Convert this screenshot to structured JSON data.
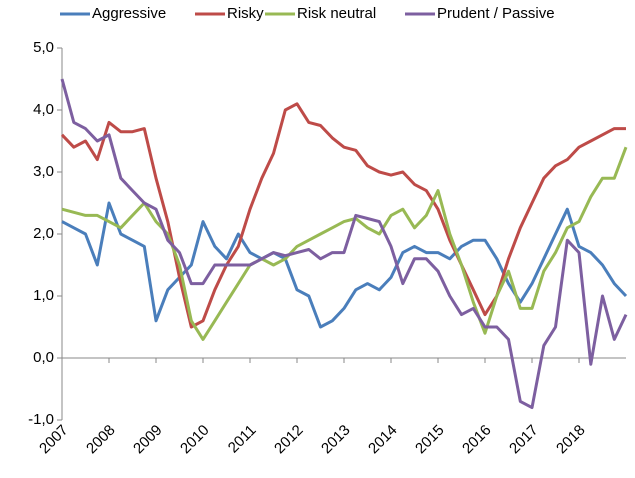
{
  "chart_data": {
    "type": "line",
    "x": [
      2007,
      2007.25,
      2007.5,
      2007.75,
      2008,
      2008.25,
      2008.5,
      2008.75,
      2009,
      2009.25,
      2009.5,
      2009.75,
      2010,
      2010.25,
      2010.5,
      2010.75,
      2011,
      2011.25,
      2011.5,
      2011.75,
      2012,
      2012.25,
      2012.5,
      2012.75,
      2013,
      2013.25,
      2013.5,
      2013.75,
      2014,
      2014.25,
      2014.5,
      2014.75,
      2015,
      2015.25,
      2015.5,
      2015.75,
      2016,
      2016.25,
      2016.5,
      2016.75,
      2017,
      2017.25,
      2017.5,
      2017.75,
      2018,
      2018.25,
      2018.5,
      2018.75,
      2019
    ],
    "series": [
      {
        "name": "Aggressive",
        "color": "#4a7ebb",
        "values": [
          2.2,
          2.1,
          2.0,
          1.5,
          2.5,
          2.0,
          1.9,
          1.8,
          0.6,
          1.1,
          1.3,
          1.5,
          2.2,
          1.8,
          1.6,
          2.0,
          1.7,
          1.6,
          1.7,
          1.6,
          1.1,
          1.0,
          0.5,
          0.6,
          0.8,
          1.1,
          1.2,
          1.1,
          1.3,
          1.7,
          1.8,
          1.7,
          1.7,
          1.6,
          1.8,
          1.9,
          1.9,
          1.6,
          1.2,
          0.9,
          1.2,
          1.6,
          2.0,
          2.4,
          1.8,
          1.7,
          1.5,
          1.2,
          1.0
        ]
      },
      {
        "name": "Risky",
        "color": "#be4b48",
        "values": [
          3.6,
          3.4,
          3.5,
          3.2,
          3.8,
          3.65,
          3.65,
          3.7,
          2.9,
          2.2,
          1.3,
          0.5,
          0.6,
          1.1,
          1.5,
          1.8,
          2.4,
          2.9,
          3.3,
          4.0,
          4.1,
          3.8,
          3.75,
          3.55,
          3.4,
          3.35,
          3.1,
          3.0,
          2.95,
          3.0,
          2.8,
          2.7,
          2.4,
          1.9,
          1.5,
          1.1,
          0.7,
          1.0,
          1.6,
          2.1,
          2.5,
          2.9,
          3.1,
          3.2,
          3.4,
          3.5,
          3.6,
          3.7,
          3.7
        ]
      },
      {
        "name": "Risk neutral",
        "color": "#98b954",
        "values": [
          2.4,
          2.35,
          2.3,
          2.3,
          2.2,
          2.1,
          2.3,
          2.5,
          2.2,
          2.0,
          1.5,
          0.6,
          0.3,
          0.6,
          0.9,
          1.2,
          1.5,
          1.6,
          1.5,
          1.6,
          1.8,
          1.9,
          2.0,
          2.1,
          2.2,
          2.25,
          2.1,
          2.0,
          2.3,
          2.4,
          2.1,
          2.3,
          2.7,
          2.0,
          1.5,
          0.9,
          0.4,
          1.0,
          1.4,
          0.8,
          0.8,
          1.4,
          1.7,
          2.1,
          2.2,
          2.6,
          2.9,
          2.9,
          3.4
        ]
      },
      {
        "name": "Prudent / Passive",
        "color": "#7d5fa0",
        "values": [
          4.5,
          3.8,
          3.7,
          3.5,
          3.6,
          2.9,
          2.7,
          2.5,
          2.4,
          1.9,
          1.7,
          1.2,
          1.2,
          1.5,
          1.5,
          1.5,
          1.5,
          1.6,
          1.7,
          1.65,
          1.7,
          1.75,
          1.6,
          1.7,
          1.7,
          2.3,
          2.25,
          2.2,
          1.8,
          1.2,
          1.6,
          1.6,
          1.4,
          1.0,
          0.7,
          0.8,
          0.5,
          0.5,
          0.3,
          -0.7,
          -0.8,
          0.2,
          0.5,
          1.9,
          1.7,
          -0.1,
          1.0,
          0.3,
          0.7
        ]
      }
    ],
    "xlim": [
      2007,
      2019
    ],
    "xticks": [
      2007,
      2008,
      2009,
      2010,
      2011,
      2012,
      2013,
      2014,
      2015,
      2016,
      2017,
      2018
    ],
    "ylim": [
      -1,
      5
    ],
    "yticks": [
      {
        "value": -1,
        "label": "-1,0"
      },
      {
        "value": 0,
        "label": "0,0"
      },
      {
        "value": 1,
        "label": "1,0"
      },
      {
        "value": 2,
        "label": "2,0"
      },
      {
        "value": 3,
        "label": "3,0"
      },
      {
        "value": 4,
        "label": "4,0"
      },
      {
        "value": 5,
        "label": "5,0"
      }
    ],
    "legend": "top"
  }
}
